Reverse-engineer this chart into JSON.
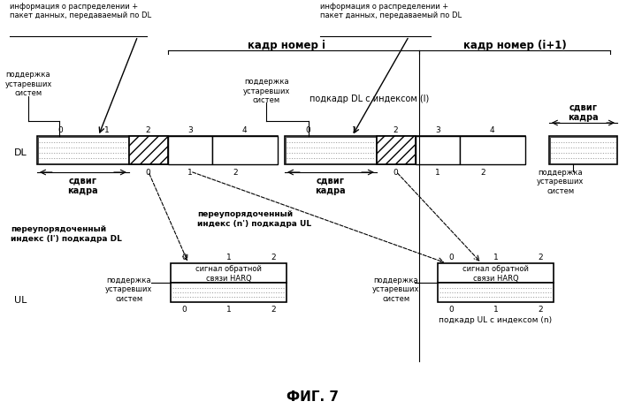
{
  "title": "ФИГ. 7",
  "bg_color": "#ffffff",
  "frame_label_i": "кадр номер i",
  "frame_label_i1": "кадр номер (i+1)",
  "dl_label": "DL",
  "ul_label": "UL",
  "subframe_dl_label": "подкадр DL с индексом (l)",
  "subframe_ul_label": "подкадр UL с индексом (n)",
  "legacy_label": "поддержка\nустаревших\nсистем",
  "frame_shift_label": "сдвиг\nкадра",
  "harq_label": "сигнал обратной\nсвязи HARQ",
  "info_label": "информация о распределении +\nпакет данных, передаваемый по DL",
  "reordered_dl_label": "переупорядоченный\nиндекс (l') подкадра DL",
  "reordered_ul_label": "переупорядоченный\nиндекс (n') подкадра UL"
}
